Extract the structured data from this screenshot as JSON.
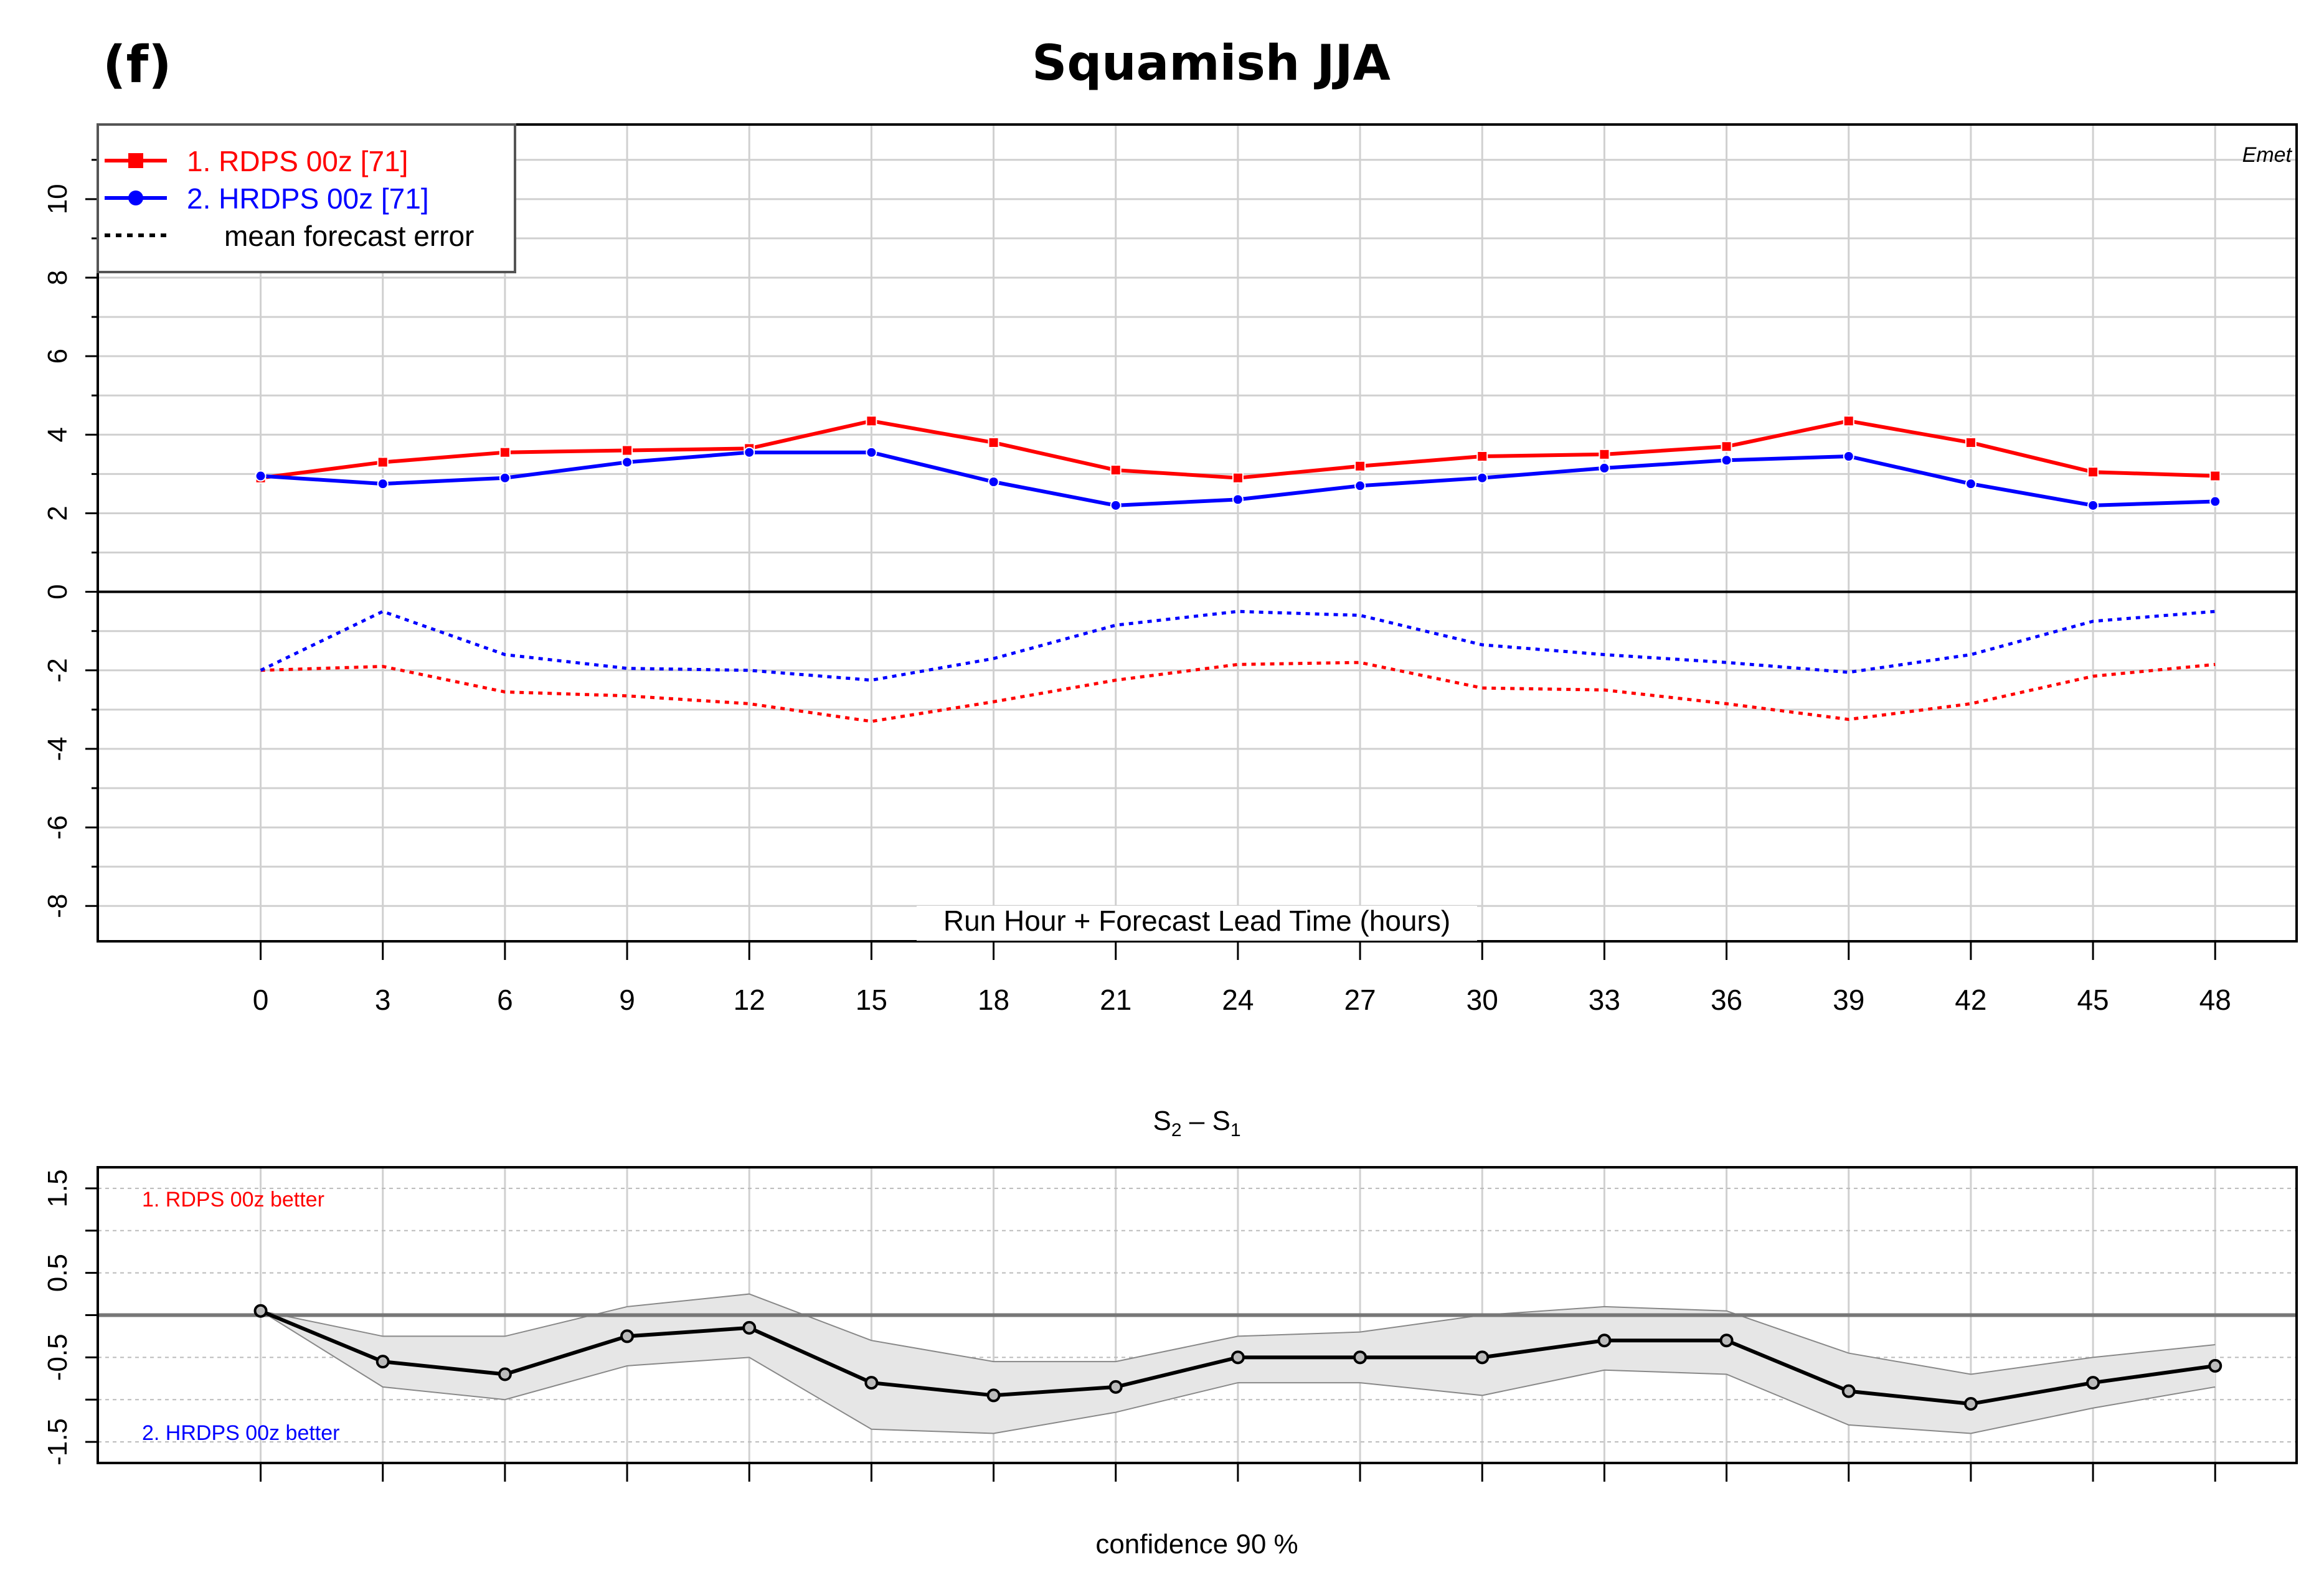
{
  "panel_label": "(f)",
  "title": "Squamish JJA",
  "colors": {
    "rdps": "#ff0000",
    "hrdps": "#0000ff",
    "black": "#000000",
    "grid": "#d0d0d0",
    "ci_fill": "#e6e6e6",
    "ci_edge": "#888888"
  },
  "chart_data": [
    {
      "type": "line",
      "name": "forecast-error-panel",
      "corner_label": "Emet",
      "xlabel": "Run Hour + Forecast Lead Time (hours)",
      "ylabel": "",
      "xlim": [
        -4,
        50
      ],
      "ylim": [
        -8.9,
        11.9
      ],
      "x": [
        0,
        3,
        6,
        9,
        12,
        15,
        18,
        21,
        24,
        27,
        30,
        33,
        36,
        39,
        42,
        45,
        48
      ],
      "x_tick_labels": [
        "0",
        "3",
        "6",
        "9",
        "12",
        "15",
        "18",
        "21",
        "24",
        "27",
        "30",
        "33",
        "36",
        "39",
        "42",
        "45",
        "48"
      ],
      "y_ticks": [
        10,
        8,
        6,
        4,
        2,
        0,
        -2,
        -4,
        -6,
        -8
      ],
      "y_tick_labels": [
        "10",
        "8",
        "6",
        "4",
        "2",
        "0",
        "-2",
        "-4",
        "-6",
        "-8"
      ],
      "zero_line": 0,
      "legend": {
        "position": "top-left",
        "entries": [
          {
            "label": "1. RDPS 00z [71]",
            "style": "solid-square",
            "series": "rdps"
          },
          {
            "label": "2. HRDPS 00z [71]",
            "style": "solid-circle",
            "series": "hrdps"
          },
          {
            "label": "mean forecast error",
            "style": "dotted",
            "series": "none"
          }
        ]
      },
      "series": [
        {
          "name": "1. RDPS 00z [71]",
          "key": "rdps",
          "kind": "solid",
          "marker": "square",
          "values": [
            2.9,
            3.3,
            3.55,
            3.6,
            3.65,
            4.35,
            3.8,
            3.1,
            2.9,
            3.2,
            3.45,
            3.5,
            3.7,
            4.35,
            3.8,
            3.05,
            2.95
          ]
        },
        {
          "name": "2. HRDPS 00z [71]",
          "key": "hrdps",
          "kind": "solid",
          "marker": "circle",
          "values": [
            2.95,
            2.75,
            2.9,
            3.3,
            3.55,
            3.55,
            2.8,
            2.2,
            2.35,
            2.7,
            2.9,
            3.15,
            3.35,
            3.45,
            2.75,
            2.2,
            2.3
          ]
        },
        {
          "name": "RDPS mean forecast error",
          "key": "rdps",
          "kind": "dotted",
          "values": [
            -2.0,
            -1.9,
            -2.55,
            -2.65,
            -2.85,
            -3.3,
            -2.8,
            -2.25,
            -1.85,
            -1.8,
            -2.45,
            -2.5,
            -2.85,
            -3.25,
            -2.85,
            -2.15,
            -1.85
          ]
        },
        {
          "name": "HRDPS mean forecast error",
          "key": "hrdps",
          "kind": "dotted",
          "values": [
            -2.0,
            -0.5,
            -1.6,
            -1.95,
            -2.0,
            -2.25,
            -1.7,
            -0.85,
            -0.5,
            -0.6,
            -1.35,
            -1.6,
            -1.8,
            -2.05,
            -1.6,
            -0.75,
            -0.5
          ]
        }
      ]
    },
    {
      "type": "line",
      "name": "score-difference-panel",
      "title": "S2 – S1",
      "subtitle": "confidence  90 %",
      "xlim": [
        -4,
        50
      ],
      "ylim": [
        -1.75,
        1.75
      ],
      "x": [
        0,
        3,
        6,
        9,
        12,
        15,
        18,
        21,
        24,
        27,
        30,
        33,
        36,
        39,
        42,
        45,
        48
      ],
      "y_ticks": [
        1.5,
        0.5,
        -0.5,
        -1.5
      ],
      "y_tick_labels": [
        "1.5",
        "0.5",
        "-0.5",
        "-1.5"
      ],
      "zero_line": 0,
      "annotations": [
        {
          "text": "1. RDPS 00z  better",
          "position": "top-left",
          "series": "rdps"
        },
        {
          "text": "2. HRDPS 00z  better",
          "position": "bottom-left",
          "series": "hrdps"
        }
      ],
      "series": [
        {
          "name": "S2 - S1",
          "values": [
            0.05,
            -0.55,
            -0.7,
            -0.25,
            -0.15,
            -0.8,
            -0.95,
            -0.85,
            -0.5,
            -0.5,
            -0.5,
            -0.3,
            -0.3,
            -0.9,
            -1.05,
            -0.8,
            -0.6
          ]
        },
        {
          "name": "upper confidence bound",
          "values": [
            0.05,
            -0.25,
            -0.25,
            0.1,
            0.25,
            -0.3,
            -0.55,
            -0.55,
            -0.25,
            -0.2,
            0.0,
            0.1,
            0.05,
            -0.45,
            -0.7,
            -0.5,
            -0.35
          ]
        },
        {
          "name": "lower confidence bound",
          "values": [
            0.05,
            -0.85,
            -1.0,
            -0.6,
            -0.5,
            -1.35,
            -1.4,
            -1.15,
            -0.8,
            -0.8,
            -0.95,
            -0.65,
            -0.7,
            -1.3,
            -1.4,
            -1.1,
            -0.85
          ]
        }
      ]
    }
  ]
}
